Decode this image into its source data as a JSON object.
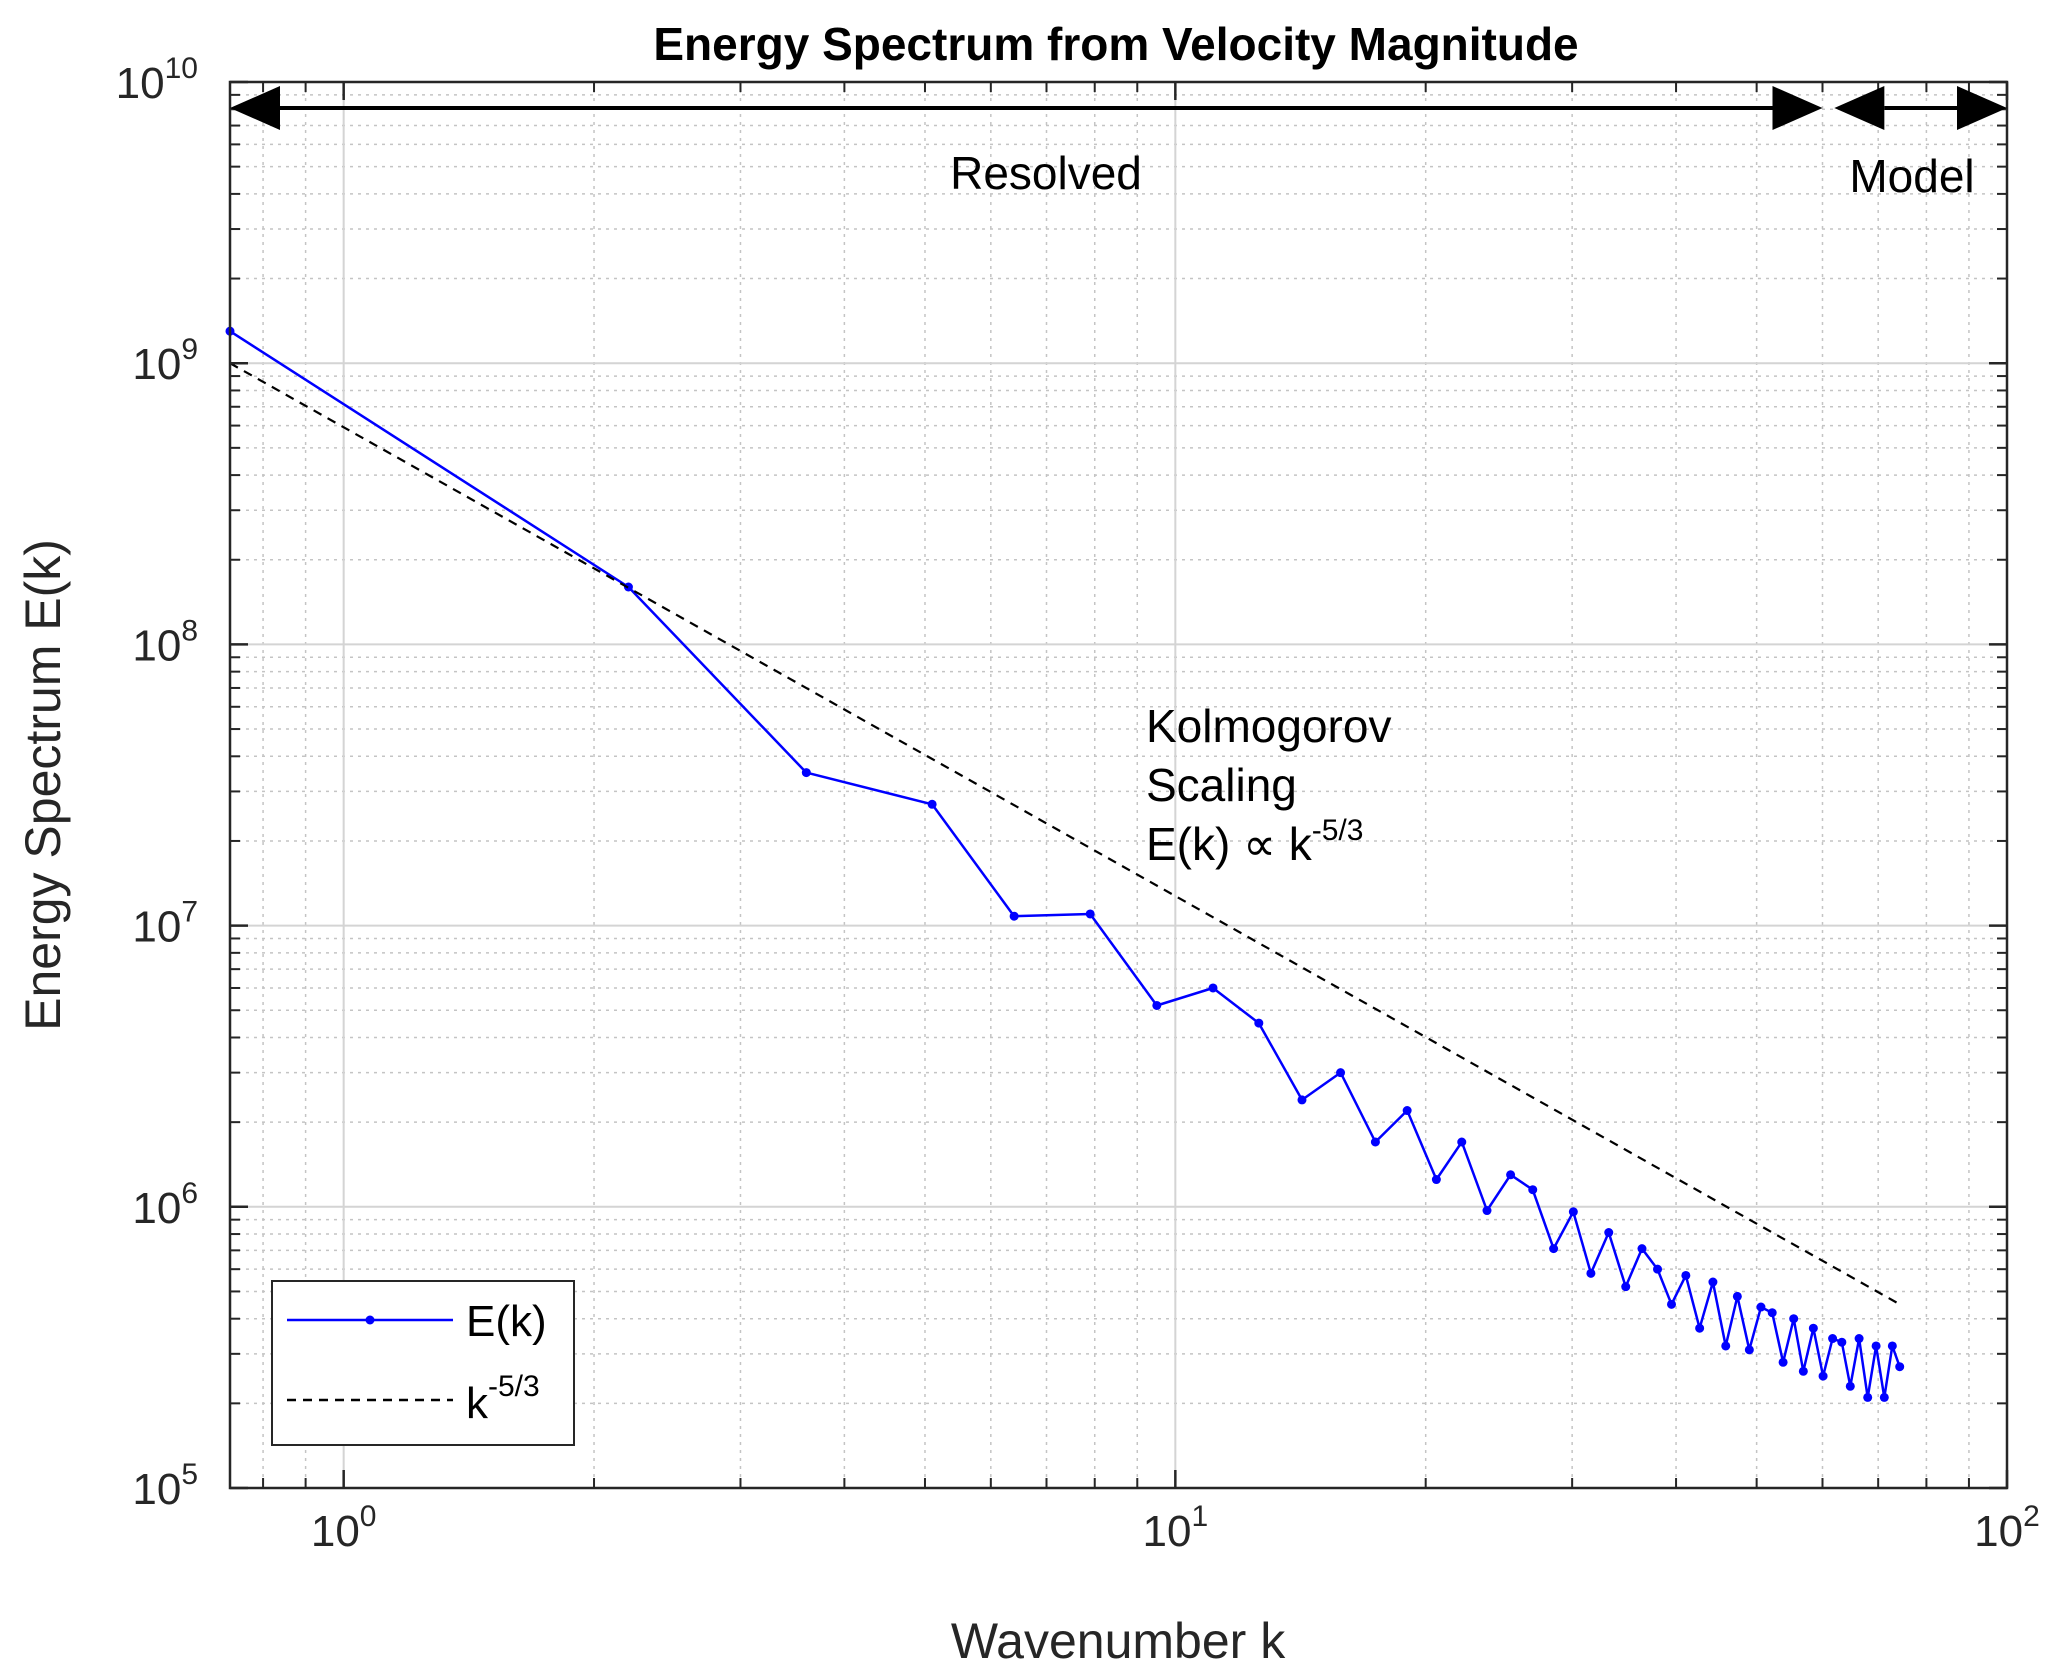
{
  "chart_data": {
    "type": "line",
    "title": "Energy Spectrum from Velocity Magnitude",
    "xlabel": "Wavenumber k",
    "ylabel": "Energy Spectrum E(k)",
    "xscale": "log",
    "yscale": "log",
    "xlim": [
      0.73,
      100
    ],
    "ylim": [
      100000,
      10000000000
    ],
    "grid": true,
    "x_ticks": [
      {
        "base": "10",
        "exp": "0",
        "value": 1
      },
      {
        "base": "10",
        "exp": "1",
        "value": 10
      },
      {
        "base": "10",
        "exp": "2",
        "value": 100
      }
    ],
    "y_ticks": [
      {
        "base": "10",
        "exp": "5",
        "value": 100000
      },
      {
        "base": "10",
        "exp": "6",
        "value": 1000000
      },
      {
        "base": "10",
        "exp": "7",
        "value": 10000000
      },
      {
        "base": "10",
        "exp": "8",
        "value": 100000000
      },
      {
        "base": "10",
        "exp": "9",
        "value": 1000000000
      },
      {
        "base": "10",
        "exp": "10",
        "value": 10000000000
      }
    ],
    "series": [
      {
        "name": "E(k)",
        "style": "solid-with-dots",
        "color": "#0000ff",
        "x": [
          0.73,
          2.2,
          3.6,
          5.1,
          6.4,
          7.9,
          9.5,
          11.1,
          12.6,
          14.2,
          15.8,
          17.4,
          19.0,
          20.6,
          22.1,
          23.7,
          25.3,
          26.9,
          28.5,
          30.1,
          31.6,
          33.2,
          34.8,
          36.4,
          38.0,
          39.5,
          41.1,
          42.7,
          44.3,
          45.9,
          47.4,
          49.0,
          50.6,
          52.2,
          53.8,
          55.4,
          56.9,
          58.5,
          60.1,
          61.7,
          63.3,
          64.8,
          66.4,
          68.0,
          69.6,
          71.2,
          72.8,
          74.3
        ],
        "values": [
          1300000000,
          160000000,
          35000000,
          27000000,
          10800000,
          11000000,
          5200000,
          6000000,
          4500000,
          2400000,
          3000000,
          1700000,
          2200000,
          1250000,
          1700000,
          970000,
          1300000,
          1150000,
          710000,
          960000,
          580000,
          810000,
          520000,
          710000,
          600000,
          450000,
          570000,
          370000,
          540000,
          320000,
          480000,
          310000,
          440000,
          420000,
          280000,
          400000,
          260000,
          370000,
          250000,
          340000,
          330000,
          230000,
          340000,
          210000,
          320000,
          210000,
          320000,
          270000
        ]
      },
      {
        "name": "k^-5/3",
        "style": "dashed",
        "color": "#000000",
        "x": [
          0.73,
          74.3
        ],
        "values": [
          1000000000,
          450000
        ]
      }
    ],
    "legend": {
      "location": "bottom-left",
      "entries": [
        {
          "label_base": "E(k)",
          "label_sup": ""
        },
        {
          "label_base": "k",
          "label_sup": "-5/3"
        }
      ]
    },
    "annotations": {
      "resolved_label": "Resolved",
      "model_label": "Model",
      "resolved_range": [
        0.73,
        60
      ],
      "model_range": [
        62,
        100
      ],
      "kolmogorov_line1": "Kolmogorov",
      "kolmogorov_line2": "Scaling",
      "kolmogorov_line3_base": "E(k) ∝ k",
      "kolmogorov_line3_sup": "-5/3"
    }
  }
}
